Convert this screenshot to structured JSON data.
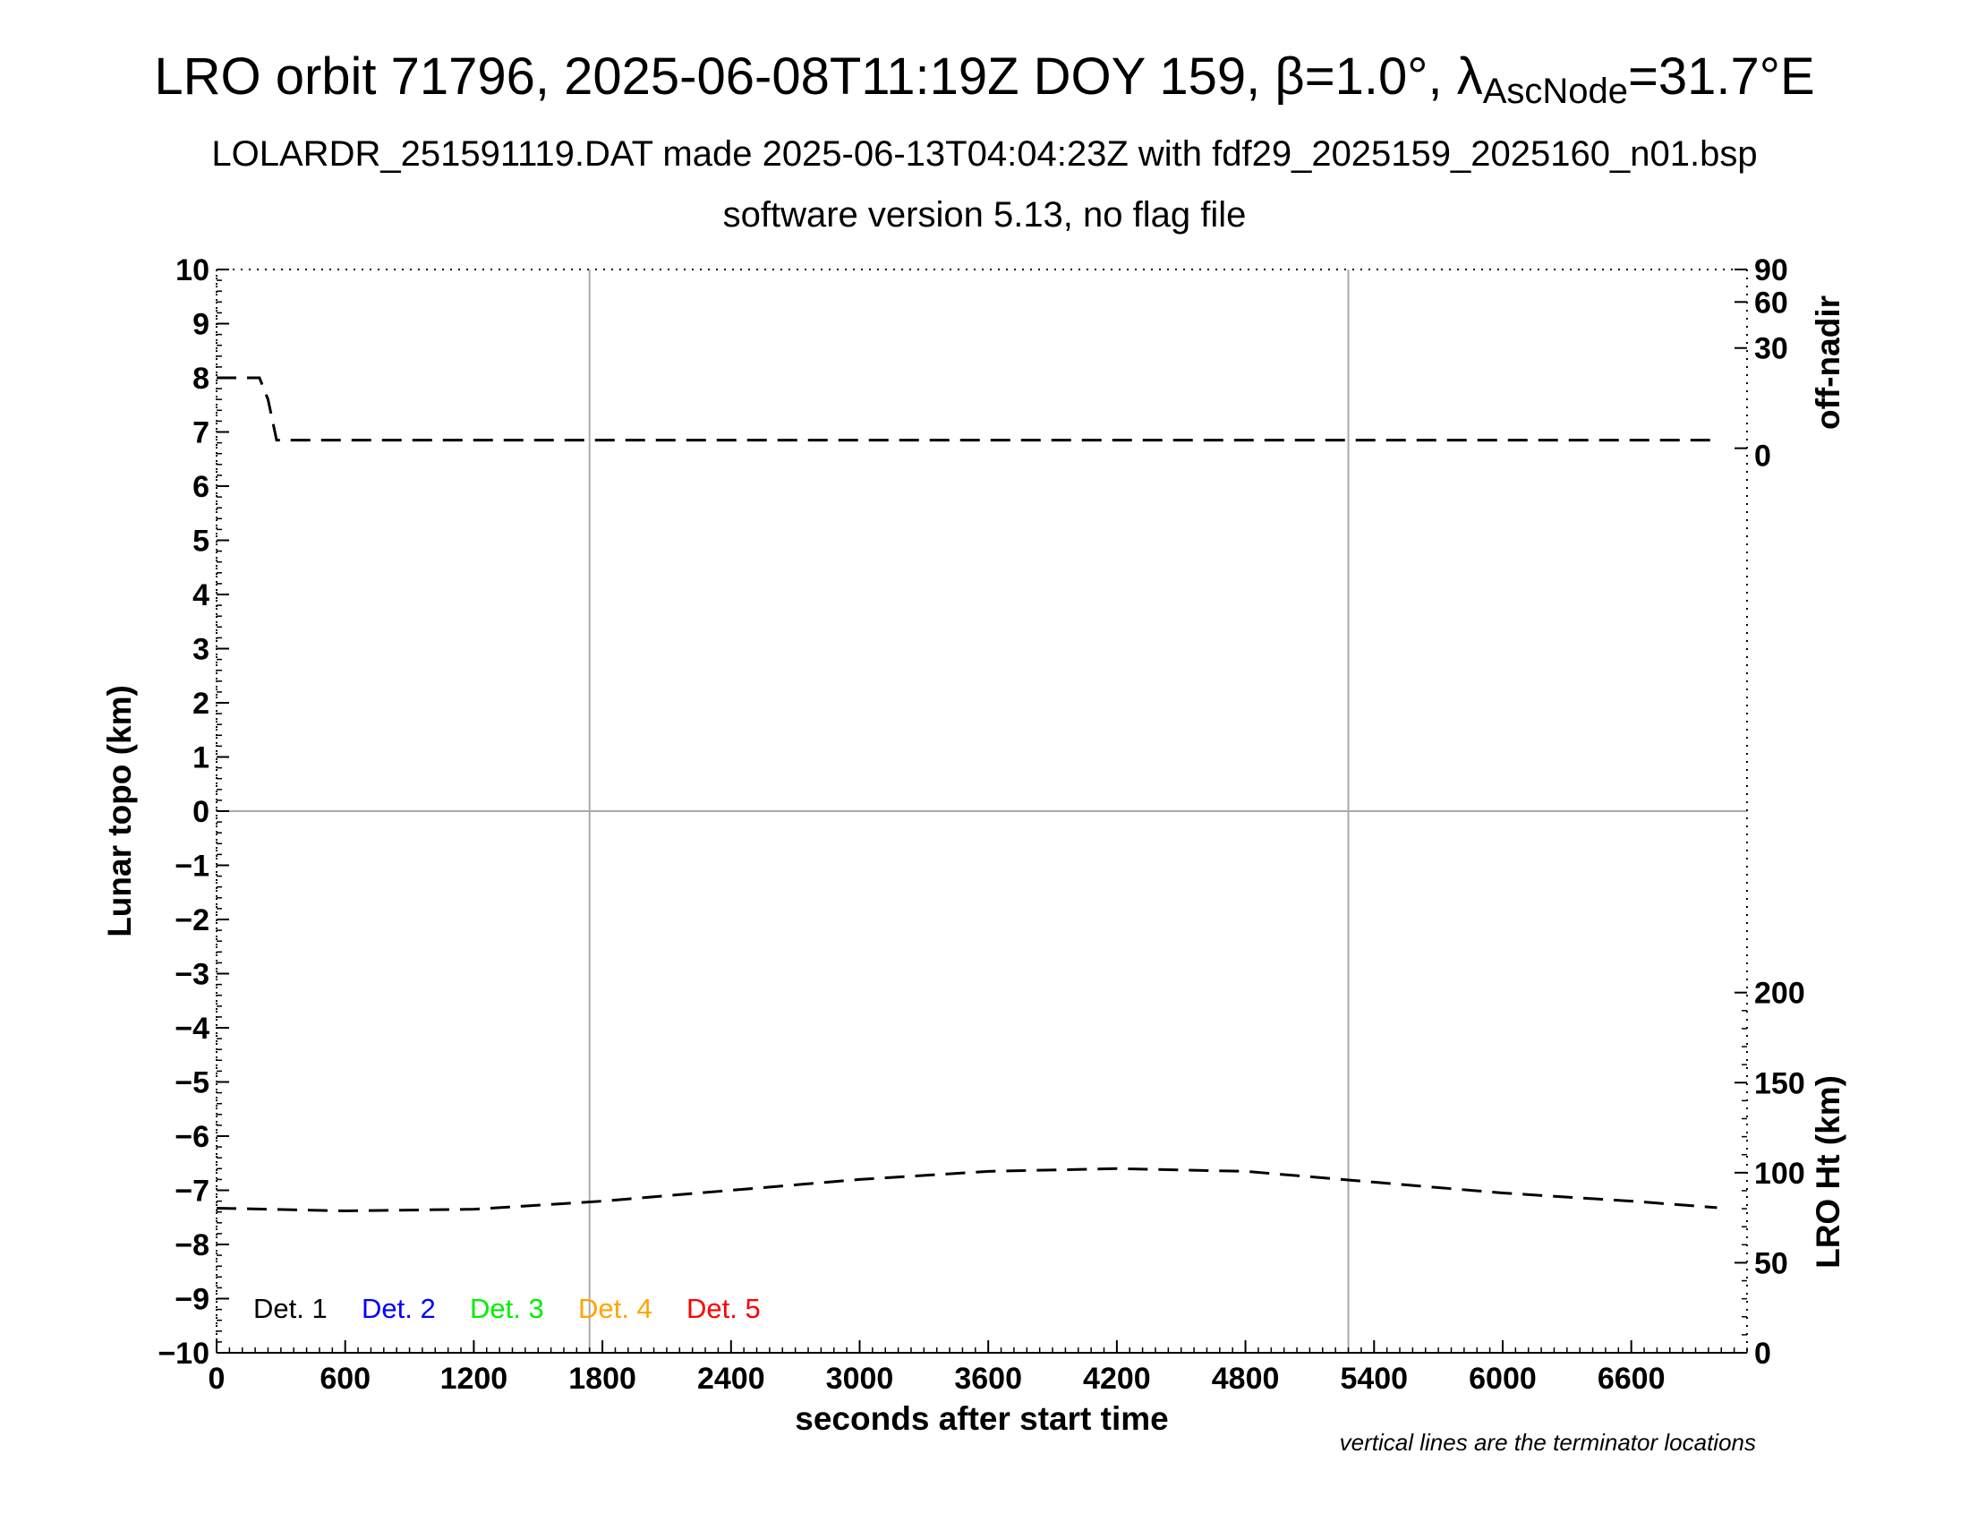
{
  "title": {
    "prefix": "LRO orbit 71796, 2025-06-08T11:19Z DOY 159, ",
    "beta_symbol": "β",
    "beta_value": "=1.0°, ",
    "lambda_symbol": "λ",
    "lambda_sub": "AscNode",
    "lambda_value": "=31.7°E"
  },
  "subtitle": "LOLARDR_251591119.DAT made 2025-06-13T04:04:23Z with fdf29_2025159_2025160_n01.bsp",
  "subtitle2": "software version 5.13, no flag file",
  "note": "vertical lines are the terminator locations",
  "chart_data": {
    "type": "line",
    "xlabel": "seconds after start time",
    "ylabel_left": "Lunar topo (km)",
    "ylabel_right_top": "off-nadir",
    "ylabel_right_bottom": "LRO Ht (km)",
    "xlim": [
      0,
      7140
    ],
    "ylim_left": [
      -10,
      10
    ],
    "x_ticks": [
      "0",
      "600",
      "1200",
      "1800",
      "2400",
      "3000",
      "3600",
      "4200",
      "4800",
      "5400",
      "6000",
      "6600"
    ],
    "x_tick_values": [
      0,
      600,
      1200,
      1800,
      2400,
      3000,
      3600,
      4200,
      4800,
      5400,
      6000,
      6600
    ],
    "y_ticks_left": [
      "10",
      "9",
      "8",
      "7",
      "6",
      "5",
      "4",
      "3",
      "2",
      "1",
      "0",
      "−1",
      "−2",
      "−3",
      "−4",
      "−5",
      "−6",
      "−7",
      "−8",
      "−9",
      "−10"
    ],
    "y_tick_values_left": [
      10,
      9,
      8,
      7,
      6,
      5,
      4,
      3,
      2,
      1,
      0,
      -1,
      -2,
      -3,
      -4,
      -5,
      -6,
      -7,
      -8,
      -9,
      -10
    ],
    "y_ticks_right_top": [
      "90",
      "60",
      "30",
      "0"
    ],
    "y_tick_values_right_top": [
      90,
      60,
      30,
      0
    ],
    "y_ticks_right_bottom": [
      "200",
      "150",
      "100",
      "50",
      "0"
    ],
    "y_tick_values_right_bottom": [
      200,
      150,
      100,
      50,
      0
    ],
    "grid_vertical_x": [
      1740,
      5280
    ],
    "grid_horizontal_y": [
      0
    ],
    "series": [
      {
        "name": "off-nadir",
        "style": "dashed",
        "color": "#000000",
        "x": [
          0,
          60,
          200,
          240,
          280,
          1000,
          2000,
          3000,
          4000,
          5000,
          6000,
          7000
        ],
        "y": [
          8.0,
          8.0,
          8.0,
          7.6,
          6.85,
          6.85,
          6.85,
          6.85,
          6.85,
          6.85,
          6.85,
          6.85
        ]
      },
      {
        "name": "LRO Ht (km)",
        "style": "dashed",
        "color": "#000000",
        "x": [
          0,
          600,
          1200,
          1800,
          2400,
          3000,
          3600,
          4200,
          4800,
          5400,
          6000,
          6600,
          7000
        ],
        "y": [
          -7.33,
          -7.38,
          -7.35,
          -7.2,
          -7.0,
          -6.8,
          -6.65,
          -6.6,
          -6.65,
          -6.85,
          -7.05,
          -7.2,
          -7.32
        ]
      }
    ],
    "legend": [
      {
        "label": "Det. 1",
        "color": "#000000"
      },
      {
        "label": "Det. 2",
        "color": "#0000ff"
      },
      {
        "label": "Det. 3",
        "color": "#00ee00"
      },
      {
        "label": "Det. 4",
        "color": "#ffa500"
      },
      {
        "label": "Det. 5",
        "color": "#ff0000"
      }
    ],
    "legend_position": "bottom-left"
  }
}
